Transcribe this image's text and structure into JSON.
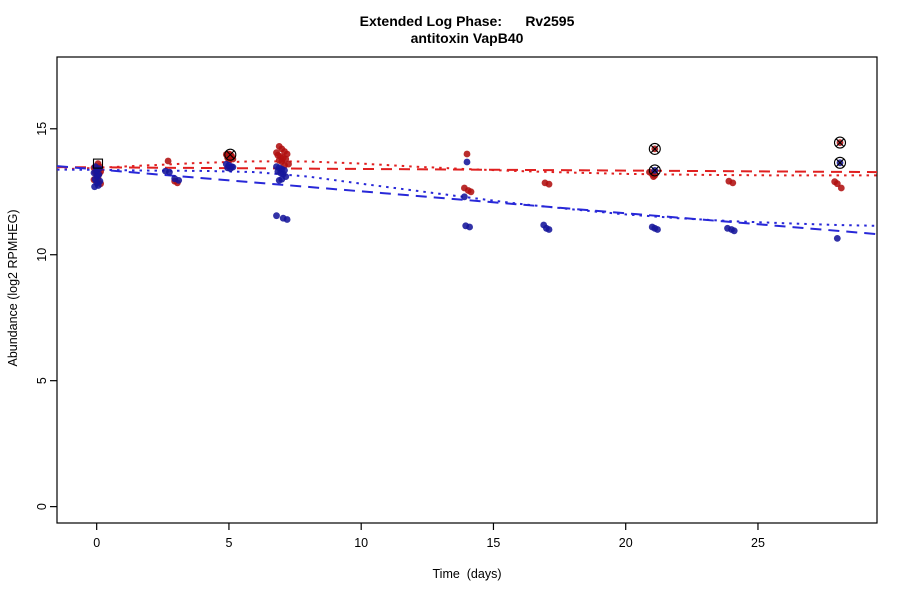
{
  "title": {
    "line1": "Extended Log Phase:      Rv2595",
    "line2": "antitoxin VapB40"
  },
  "axes": {
    "x": {
      "label": "Time  (days)",
      "ticks": [
        0,
        5,
        10,
        15,
        20,
        25
      ],
      "range": [
        -1.5,
        29.5
      ]
    },
    "y": {
      "label": "Abundance (log2 RPMHEG)",
      "ticks": [
        0,
        5,
        10,
        15
      ],
      "range": [
        -0.65,
        17.85
      ]
    }
  },
  "chart_data": {
    "type": "scatter",
    "title": "Extended Log Phase: Rv2595 antitoxin VapB40",
    "xlabel": "Time (days)",
    "ylabel": "Abundance (log2 RPMHEG)",
    "xlim": [
      -1.5,
      29.5
    ],
    "ylim": [
      -0.65,
      17.85
    ],
    "grid": false,
    "legend": "none",
    "series": [
      {
        "name": "condition-red",
        "color": "#b01010",
        "points": [
          [
            -0.1,
            13.45
          ],
          [
            0.05,
            13.62
          ],
          [
            0.1,
            13.5
          ],
          [
            0,
            13.38
          ],
          [
            0.15,
            13.3
          ],
          [
            -0.05,
            13.28
          ],
          [
            0.1,
            13.22
          ],
          [
            0,
            13.15
          ],
          [
            0.05,
            13.05
          ],
          [
            -0.1,
            12.98
          ],
          [
            0.05,
            12.88
          ],
          [
            0.15,
            12.82
          ],
          [
            2.7,
            13.72
          ],
          [
            2.95,
            12.92
          ],
          [
            3.05,
            12.85
          ],
          [
            4.9,
            13.98
          ],
          [
            5.0,
            14.0
          ],
          [
            5.1,
            13.92
          ],
          [
            4.95,
            13.85
          ],
          [
            5.05,
            13.88
          ],
          [
            5.15,
            13.8
          ],
          [
            5.0,
            13.78
          ],
          [
            5.05,
            13.97
          ],
          [
            6.8,
            14.05
          ],
          [
            6.9,
            14.3
          ],
          [
            7.0,
            14.2
          ],
          [
            7.1,
            14.1
          ],
          [
            7.2,
            14.0
          ],
          [
            6.85,
            13.95
          ],
          [
            6.95,
            13.9
          ],
          [
            7.05,
            13.85
          ],
          [
            7.15,
            13.8
          ],
          [
            6.9,
            13.75
          ],
          [
            7.0,
            13.7
          ],
          [
            7.25,
            13.6
          ],
          [
            7.1,
            13.55
          ],
          [
            14.0,
            14.0
          ],
          [
            13.9,
            12.65
          ],
          [
            14.05,
            12.55
          ],
          [
            14.15,
            12.5
          ],
          [
            16.95,
            12.85
          ],
          [
            17.1,
            12.8
          ],
          [
            20.9,
            13.28
          ],
          [
            21.0,
            13.2
          ],
          [
            21.1,
            13.15
          ],
          [
            21.05,
            13.1
          ],
          [
            21.1,
            14.2
          ],
          [
            23.9,
            12.92
          ],
          [
            24.05,
            12.85
          ],
          [
            27.9,
            12.9
          ],
          [
            28.0,
            12.82
          ],
          [
            28.15,
            12.65
          ],
          [
            28.1,
            14.45
          ]
        ]
      },
      {
        "name": "condition-blue",
        "color": "#16169b",
        "points": [
          [
            -0.05,
            13.5
          ],
          [
            0.1,
            13.42
          ],
          [
            0,
            13.32
          ],
          [
            -0.1,
            13.25
          ],
          [
            0.08,
            13.18
          ],
          [
            0.02,
            13.1
          ],
          [
            -0.06,
            13.0
          ],
          [
            0.12,
            12.92
          ],
          [
            0,
            12.85
          ],
          [
            0.06,
            12.75
          ],
          [
            -0.08,
            12.7
          ],
          [
            2.6,
            13.32
          ],
          [
            2.75,
            13.28
          ],
          [
            2.95,
            13.02
          ],
          [
            3.1,
            12.95
          ],
          [
            4.9,
            13.6
          ],
          [
            5.0,
            13.55
          ],
          [
            5.1,
            13.5
          ],
          [
            4.95,
            13.45
          ],
          [
            5.05,
            13.42
          ],
          [
            5.15,
            13.48
          ],
          [
            6.8,
            13.5
          ],
          [
            6.9,
            13.45
          ],
          [
            7.0,
            13.4
          ],
          [
            7.1,
            13.35
          ],
          [
            6.85,
            13.3
          ],
          [
            6.95,
            13.25
          ],
          [
            7.05,
            13.2
          ],
          [
            7.15,
            13.1
          ],
          [
            7.0,
            13.0
          ],
          [
            6.9,
            12.95
          ],
          [
            6.8,
            11.55
          ],
          [
            7.05,
            11.45
          ],
          [
            7.2,
            11.4
          ],
          [
            14.0,
            13.68
          ],
          [
            13.9,
            12.3
          ],
          [
            13.95,
            11.15
          ],
          [
            14.1,
            11.1
          ],
          [
            16.9,
            11.18
          ],
          [
            17.0,
            11.05
          ],
          [
            17.1,
            11.0
          ],
          [
            21.0,
            11.1
          ],
          [
            21.1,
            11.05
          ],
          [
            21.2,
            11.0
          ],
          [
            21.1,
            13.35
          ],
          [
            23.85,
            11.05
          ],
          [
            24.0,
            11.0
          ],
          [
            24.1,
            10.95
          ],
          [
            28.0,
            10.65
          ],
          [
            28.1,
            13.65
          ]
        ]
      }
    ],
    "trend_lines": [
      {
        "name": "red-linear-fit",
        "color": "#e02020",
        "style": "dashed",
        "points": [
          [
            -1.5,
            13.48
          ],
          [
            29.5,
            13.28
          ]
        ]
      },
      {
        "name": "red-smooth-fit",
        "color": "#e02020",
        "style": "dotted",
        "points": [
          [
            -1.5,
            13.38
          ],
          [
            0,
            13.45
          ],
          [
            2,
            13.55
          ],
          [
            4,
            13.65
          ],
          [
            6,
            13.71
          ],
          [
            8,
            13.7
          ],
          [
            10,
            13.62
          ],
          [
            12,
            13.5
          ],
          [
            14,
            13.4
          ],
          [
            16,
            13.32
          ],
          [
            18,
            13.26
          ],
          [
            20,
            13.21
          ],
          [
            22,
            13.18
          ],
          [
            24,
            13.16
          ],
          [
            26,
            13.15
          ],
          [
            28,
            13.15
          ],
          [
            29.5,
            13.15
          ]
        ]
      },
      {
        "name": "blue-linear-fit",
        "color": "#2828d8",
        "style": "dashed",
        "points": [
          [
            -1.5,
            13.52
          ],
          [
            29.5,
            10.82
          ]
        ]
      },
      {
        "name": "blue-smooth-fit",
        "color": "#2828d8",
        "style": "dotted",
        "points": [
          [
            -1.5,
            13.38
          ],
          [
            0,
            13.37
          ],
          [
            2,
            13.34
          ],
          [
            4,
            13.33
          ],
          [
            6,
            13.28
          ],
          [
            8,
            13.1
          ],
          [
            10,
            12.82
          ],
          [
            12,
            12.55
          ],
          [
            14,
            12.28
          ],
          [
            16,
            12.02
          ],
          [
            18,
            11.8
          ],
          [
            20,
            11.6
          ],
          [
            22,
            11.45
          ],
          [
            24,
            11.33
          ],
          [
            26,
            11.25
          ],
          [
            28,
            11.18
          ],
          [
            29.5,
            11.15
          ]
        ]
      }
    ],
    "flagged_points": [
      {
        "x": 0.05,
        "y": 13.62,
        "shape": "square"
      },
      {
        "x": 5.05,
        "y": 13.97,
        "shape": "circle-x"
      },
      {
        "x": 21.1,
        "y": 14.2,
        "shape": "circle-x"
      },
      {
        "x": 21.1,
        "y": 13.35,
        "shape": "circle-x"
      },
      {
        "x": 28.1,
        "y": 14.45,
        "shape": "circle-x"
      },
      {
        "x": 28.1,
        "y": 13.65,
        "shape": "circle-x"
      }
    ]
  },
  "style": {
    "point_radius": 3.4,
    "box_color": "#000000",
    "background": "#ffffff"
  }
}
